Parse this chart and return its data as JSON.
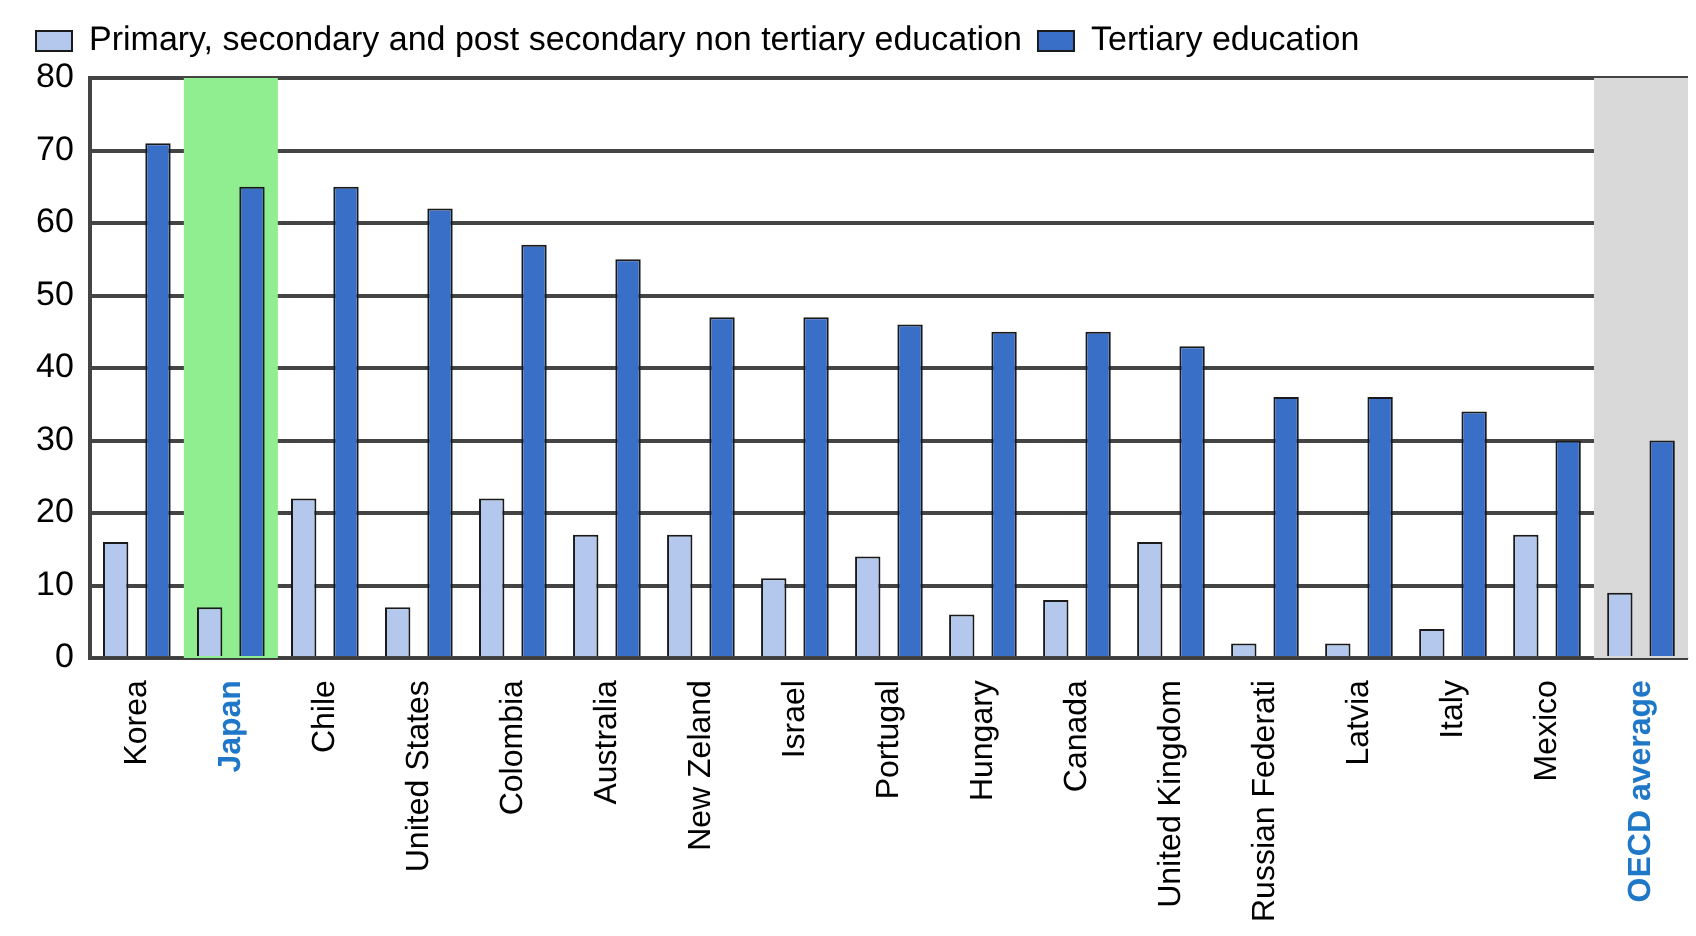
{
  "chart_data": {
    "type": "bar",
    "categories": [
      "Korea",
      "Japan",
      "Chile",
      "United States",
      "Colombia",
      "Australia",
      "New Zeland",
      "Israel",
      "Portugal",
      "Hungary",
      "Canada",
      "United Kingdom",
      "Russian Federati",
      "Latvia",
      "Italy",
      "Mexico",
      "OECD average"
    ],
    "series": [
      {
        "name": "Primary, secondary and post secondary non tertiary education",
        "color": "#b4c8ee",
        "values": [
          16,
          7,
          22,
          7,
          22,
          17,
          17,
          11,
          14,
          6,
          8,
          16,
          2,
          2,
          4,
          17,
          9
        ]
      },
      {
        "name": "Tertiary education",
        "color": "#3a6fc8",
        "values": [
          71,
          65,
          65,
          62,
          57,
          55,
          47,
          47,
          46,
          45,
          45,
          43,
          36,
          36,
          34,
          30,
          30
        ]
      }
    ],
    "ylim": [
      0,
      80
    ],
    "yticks": [
      0,
      10,
      20,
      30,
      40,
      50,
      60,
      70,
      80
    ],
    "bands": [
      {
        "axis": "x",
        "from": "Japan",
        "to": "Japan",
        "color": "#90ee90"
      },
      {
        "axis": "x",
        "from": "OECD average",
        "to": "OECD average",
        "color": "#d9d9d9"
      }
    ],
    "grid": "y",
    "legend": "top left"
  }
}
